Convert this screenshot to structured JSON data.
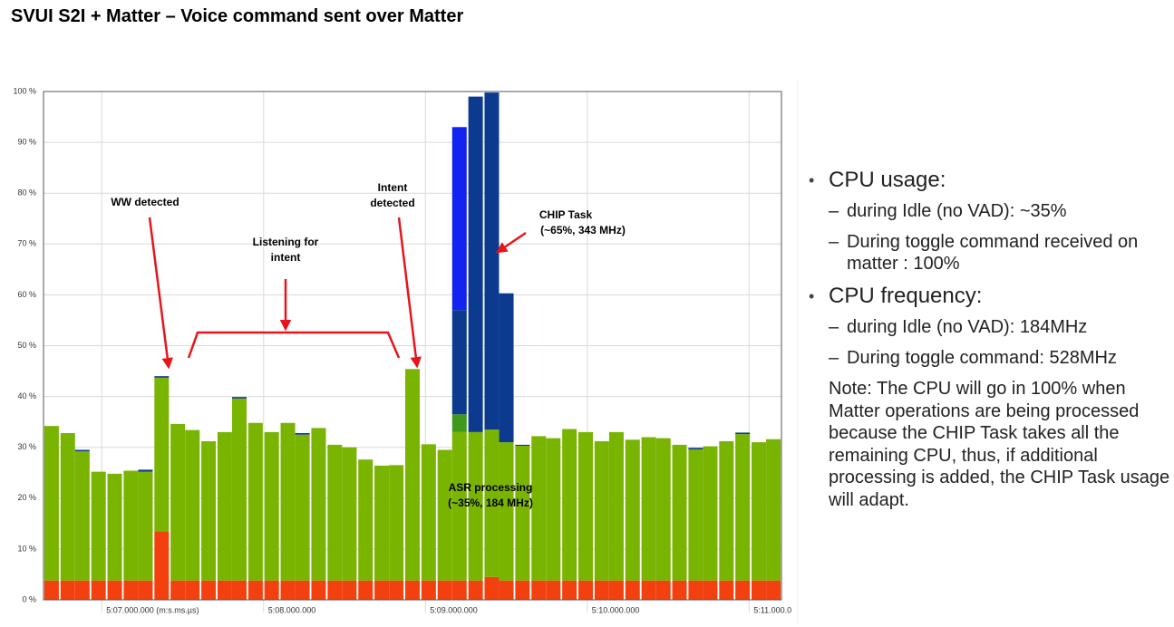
{
  "title": "SVUI S2I + Matter – Voice command sent over Matter",
  "chart_data": {
    "type": "stacked-bar",
    "x": [
      426.69,
      426.79,
      426.88,
      426.98,
      427.08,
      427.18,
      427.27,
      427.37,
      427.47,
      427.56,
      427.66,
      427.76,
      427.85,
      427.95,
      428.05,
      428.15,
      428.24,
      428.34,
      428.44,
      428.53,
      428.63,
      428.73,
      428.82,
      428.92,
      429.02,
      429.12,
      429.21,
      429.31,
      429.41,
      429.5,
      429.6,
      429.7,
      429.79,
      429.89,
      429.99,
      430.09,
      430.18,
      430.28,
      430.38,
      430.47,
      430.57,
      430.67,
      430.76,
      430.86,
      430.96,
      431.06,
      431.15
    ],
    "series": [
      {
        "color": "#f2400f",
        "values": [
          3.8,
          3.8,
          3.8,
          3.8,
          3.8,
          3.8,
          3.8,
          13.5,
          3.8,
          3.8,
          3.8,
          3.8,
          3.8,
          3.8,
          3.8,
          3.8,
          3.8,
          3.8,
          3.8,
          3.8,
          3.8,
          3.8,
          3.8,
          3.8,
          3.8,
          3.8,
          3.8,
          3.8,
          4.5,
          3.8,
          3.8,
          3.8,
          3.8,
          3.8,
          3.8,
          3.8,
          3.8,
          3.8,
          3.8,
          3.8,
          3.8,
          3.8,
          3.8,
          3.8,
          3.8,
          3.8,
          3.8
        ]
      },
      {
        "color": "#78b400",
        "values": [
          30.4,
          29.0,
          25.4,
          21.4,
          21.0,
          21.6,
          21.4,
          30.2,
          30.8,
          29.6,
          27.4,
          29.2,
          35.8,
          31.0,
          29.2,
          31.0,
          28.7,
          30.0,
          26.7,
          26.2,
          23.8,
          22.6,
          22.7,
          41.6,
          26.8,
          25.7,
          29.2,
          29.2,
          29.0,
          27.2,
          26.5,
          28.4,
          28.0,
          29.8,
          29.2,
          27.4,
          29.2,
          27.7,
          28.2,
          28.0,
          26.7,
          25.8,
          26.4,
          27.4,
          28.8,
          27.2,
          27.8
        ]
      },
      {
        "color": "#3f9a1c",
        "values": [
          0,
          0,
          0,
          0,
          0,
          0,
          0,
          0,
          0,
          0,
          0,
          0,
          0,
          0,
          0,
          0,
          0,
          0,
          0,
          0,
          0,
          0,
          0,
          0,
          0,
          0,
          3.5,
          0,
          0,
          0,
          0,
          0,
          0,
          0,
          0,
          0,
          0,
          0,
          0,
          0,
          0,
          0,
          0,
          0,
          0,
          0,
          0
        ]
      },
      {
        "color": "#0b3a8e",
        "values": [
          0,
          0,
          0.3,
          0,
          0,
          0,
          0.4,
          0.3,
          0,
          0,
          0,
          0,
          0.3,
          0,
          0,
          0,
          0.3,
          0,
          0,
          0,
          0,
          0,
          0,
          0,
          0,
          0,
          20.5,
          66.0,
          66.3,
          29.3,
          0.2,
          0,
          0,
          0,
          0,
          0,
          0,
          0,
          0,
          0,
          0,
          0.3,
          0,
          0,
          0.3,
          0,
          0
        ]
      },
      {
        "color": "#1424f0",
        "values": [
          0,
          0,
          0,
          0,
          0,
          0,
          0,
          0,
          0,
          0,
          0,
          0,
          0,
          0,
          0,
          0,
          0,
          0,
          0,
          0,
          0,
          0,
          0,
          0,
          0,
          0,
          36.0,
          0,
          0,
          0,
          0,
          0,
          0,
          0,
          0,
          0,
          0,
          0,
          0,
          0,
          0,
          0,
          0,
          0,
          0,
          0,
          0
        ]
      }
    ],
    "xlim": [
      426.64,
      431.2
    ],
    "xticks": [
      {
        "value": 427,
        "label": "5:07.000.000 (m:s.ms.µs)"
      },
      {
        "value": 428,
        "label": "5:08.000.000"
      },
      {
        "value": 429,
        "label": "5:09.000.000"
      },
      {
        "value": 430,
        "label": "5:10.000.000"
      },
      {
        "value": 431,
        "label": "5:11.000.0"
      }
    ],
    "ylim": [
      0,
      100
    ],
    "yticks": [
      {
        "value": 0,
        "label": "0 %"
      },
      {
        "value": 10,
        "label": "10 %"
      },
      {
        "value": 20,
        "label": "20 %"
      },
      {
        "value": 30,
        "label": "30 %"
      },
      {
        "value": 40,
        "label": "40 %"
      },
      {
        "value": 50,
        "label": "50 %"
      },
      {
        "value": 60,
        "label": "60 %"
      },
      {
        "value": 70,
        "label": "70 %"
      },
      {
        "value": 80,
        "label": "80 %"
      },
      {
        "value": 90,
        "label": "90 %"
      },
      {
        "value": 100,
        "label": "100 %"
      }
    ],
    "grid": true,
    "annotations": [
      [
        "WW detected"
      ],
      [
        "Listening for",
        "intent"
      ],
      [
        "Intent",
        "detected"
      ],
      [
        "CHIP Task",
        "(~65%, 343 MHz)"
      ],
      [
        "ASR processing",
        "(~35%, 184 MHz)"
      ]
    ]
  },
  "notes": {
    "bullets": [
      {
        "text": "CPU usage:",
        "subs": [
          "during Idle (no VAD): ~35%",
          "During toggle command received on matter : 100%"
        ]
      },
      {
        "text": "CPU frequency:",
        "subs": [
          "during Idle (no VAD): 184MHz",
          "During toggle command: 528MHz"
        ]
      }
    ],
    "note": "Note: The CPU will go in 100% when Matter operations are being processed because the CHIP Task takes all the remaining CPU, thus, if additional processing is added, the CHIP Task usage will adapt."
  }
}
